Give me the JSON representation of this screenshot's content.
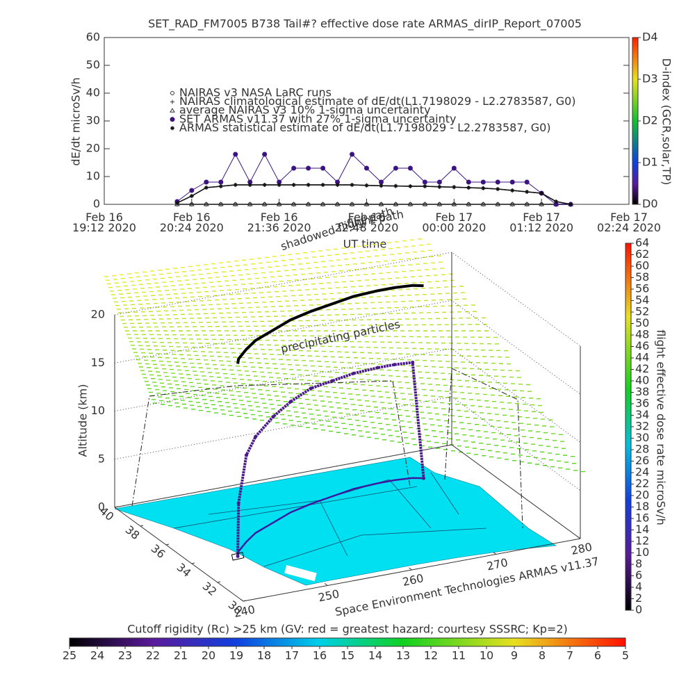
{
  "chart_data": [
    {
      "type": "line",
      "title": "SET_RAD_FM7005  B738 Tail#? effective dose rate ARMAS_dirIP_Report_07005",
      "y_label": "dE/dt microSv/h",
      "x_label": "UT time",
      "x": [
        "2020-02-16T20:12",
        "2020-02-16T20:24",
        "2020-02-16T20:36",
        "2020-02-16T20:48",
        "2020-02-16T21:00",
        "2020-02-16T21:12",
        "2020-02-16T21:24",
        "2020-02-16T21:36",
        "2020-02-16T21:48",
        "2020-02-16T22:00",
        "2020-02-16T22:12",
        "2020-02-16T22:24",
        "2020-02-16T22:36",
        "2020-02-16T22:48",
        "2020-02-16T23:00",
        "2020-02-16T23:12",
        "2020-02-16T23:24",
        "2020-02-16T23:36",
        "2020-02-16T23:48",
        "2020-02-17T00:00",
        "2020-02-17T00:12",
        "2020-02-17T00:24",
        "2020-02-17T00:36",
        "2020-02-17T00:48",
        "2020-02-17T01:00",
        "2020-02-17T01:12",
        "2020-02-17T01:24",
        "2020-02-17T01:36"
      ],
      "series": [
        {
          "name": "NAIRAS v3 NASA LaRC runs",
          "color": "#333333",
          "marker": "circle",
          "values": [
            0,
            0,
            0,
            0,
            0,
            0,
            0,
            0,
            0,
            0,
            0,
            0,
            0,
            0,
            0,
            0,
            0,
            0,
            0,
            0,
            0,
            0,
            0,
            0,
            0,
            0,
            0,
            0
          ]
        },
        {
          "name": "NAIRAS climatological estimate of dE/dt(L1.7198029 - L2.2783587, G0)",
          "color": "#333333",
          "marker": "plus",
          "values": [
            0.5,
            3,
            6,
            6.5,
            7,
            7,
            7,
            7,
            7,
            7,
            7,
            7,
            7,
            6.8,
            6.7,
            6.6,
            6.5,
            6.5,
            6.3,
            6.2,
            6,
            5.8,
            5.5,
            5,
            4.5,
            4,
            1,
            0
          ]
        },
        {
          "name": "average NAIRAS v3 10% 1-sigma uncertainty",
          "color": "#333333",
          "marker": "triangle",
          "values": [
            0,
            0,
            0,
            0,
            0,
            0,
            0,
            0,
            0,
            0,
            0,
            0,
            0,
            0,
            0,
            0,
            0,
            0,
            0,
            0,
            0,
            0,
            0,
            0,
            0,
            0,
            0,
            0
          ]
        },
        {
          "name": "SET ARMAS v11.37 with 27% 1-sigma uncertainty",
          "color": "#3c1482",
          "marker": "dot",
          "values": [
            1,
            5,
            8,
            8,
            18,
            8,
            18,
            8,
            13,
            13,
            13,
            8,
            18,
            13,
            8,
            13,
            13,
            8,
            8,
            13,
            8,
            8,
            8,
            8,
            8,
            4,
            0,
            0
          ]
        },
        {
          "name": "ARMAS statistical estimate of dE/dt(L1.7198029 - L2.2783587, G0)",
          "color": "#111111",
          "marker": "asterisk",
          "values": [
            0.5,
            3,
            6,
            6.5,
            7,
            7,
            7,
            7,
            7,
            7,
            7,
            7,
            7,
            6.8,
            6.7,
            6.6,
            6.5,
            6.5,
            6.3,
            6.2,
            6,
            5.8,
            5.5,
            5,
            4.5,
            4,
            1,
            0
          ]
        }
      ],
      "xlim": [
        "2020-02-16T19:12",
        "2020-02-17T02:24"
      ],
      "xticks": [
        {
          "value": "2020-02-16T19:12",
          "label": "Feb 16\n19:12 2020"
        },
        {
          "value": "2020-02-16T20:24",
          "label": "Feb 16\n20:24 2020"
        },
        {
          "value": "2020-02-16T21:36",
          "label": "Feb 16\n21:36 2020"
        },
        {
          "value": "2020-02-16T22:48",
          "label": "Feb 16\n22:48 2020"
        },
        {
          "value": "2020-02-17T00:00",
          "label": "Feb 17\n00:00 2020"
        },
        {
          "value": "2020-02-17T01:12",
          "label": "Feb 17\n01:12 2020"
        },
        {
          "value": "2020-02-17T02:24",
          "label": "Feb 17\n02:24 2020"
        }
      ],
      "ylim": [
        0,
        60
      ],
      "yticks": [
        0,
        10,
        20,
        30,
        40,
        50,
        60
      ],
      "colorbar": {
        "label": "D-index (GCR,solar,TP)",
        "lim": [
          0,
          4
        ],
        "ticks": [
          {
            "value": 0,
            "label": "D0"
          },
          {
            "value": 1,
            "label": "D1"
          },
          {
            "value": 2,
            "label": "D2"
          },
          {
            "value": 3,
            "label": "D3"
          },
          {
            "value": 4,
            "label": "D4"
          }
        ]
      }
    },
    {
      "type": "scatter3d",
      "annotations": [
        "shadowed flight path",
        "flight path",
        "precipitating particles",
        "Space Environment Technologies ARMAS v11.37"
      ],
      "z_label": "Altitude (km)",
      "lat": [
        33.9,
        34.3,
        35,
        35.6,
        36.2,
        36.8,
        37.2,
        37.5,
        37.8,
        37.9,
        37.9,
        37.8,
        37.6
      ],
      "lon": [
        245.3,
        246,
        248,
        250,
        253,
        256,
        259,
        262,
        265,
        268,
        270,
        272,
        273
      ],
      "alt": [
        0,
        5,
        9,
        10,
        11,
        11.5,
        12,
        12,
        12,
        12,
        12,
        12,
        0
      ],
      "color": "#4b1a8a",
      "latlim": [
        30,
        40
      ],
      "latticks": [
        30,
        32,
        34,
        36,
        38,
        40
      ],
      "lonlim": [
        240,
        280
      ],
      "lonticks": [
        240,
        250,
        260,
        270,
        280
      ],
      "zlim": [
        0,
        20
      ],
      "zticks": [
        0,
        5,
        10,
        15,
        20
      ],
      "colorbar": {
        "label": "flight effective dose rate microSv/h",
        "lim": [
          0,
          64
        ],
        "ticks": [
          0,
          2,
          4,
          6,
          8,
          10,
          12,
          14,
          16,
          18,
          20,
          22,
          24,
          26,
          28,
          30,
          32,
          34,
          36,
          38,
          40,
          42,
          44,
          46,
          48,
          50,
          52,
          54,
          56,
          58,
          60,
          62,
          64
        ]
      }
    },
    {
      "type": "colorbar",
      "title": "Cutoff rigidity (Rc) >25 km (GV: red = greatest hazard; courtesy SSSRC; Kp=2)",
      "xlim": [
        25,
        5
      ],
      "xticks": [
        25,
        24,
        23,
        22,
        21,
        20,
        19,
        18,
        17,
        16,
        15,
        14,
        13,
        12,
        11,
        10,
        9,
        8,
        7,
        6,
        5
      ]
    }
  ]
}
